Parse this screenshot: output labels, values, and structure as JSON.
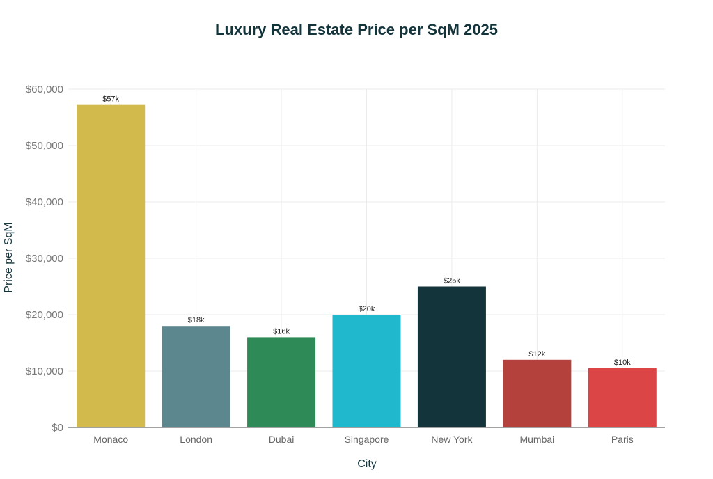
{
  "chart_data": {
    "type": "bar",
    "title": "Luxury Real Estate Price per SqM 2025",
    "xlabel": "City",
    "ylabel": "Price per SqM",
    "categories": [
      "Monaco",
      "London",
      "Dubai",
      "Singapore",
      "New York",
      "Mumbai",
      "Paris"
    ],
    "values": [
      57200,
      18000,
      16000,
      20000,
      25000,
      12000,
      10500
    ],
    "data_labels": [
      "$57k",
      "$18k",
      "$16k",
      "$20k",
      "$25k",
      "$12k",
      "$10k"
    ],
    "colors": [
      "#d2ba4c",
      "#5d878f",
      "#2e8b57",
      "#1fb8cd",
      "#13343b",
      "#b4413c",
      "#db4545"
    ],
    "ylim": [
      0,
      60000
    ],
    "yticks": [
      0,
      10000,
      20000,
      30000,
      40000,
      50000,
      60000
    ],
    "ytick_labels": [
      "$0",
      "$10,000",
      "$20,000",
      "$30,000",
      "$40,000",
      "$50,000",
      "$60,000"
    ],
    "grid": true,
    "legend": "none"
  }
}
